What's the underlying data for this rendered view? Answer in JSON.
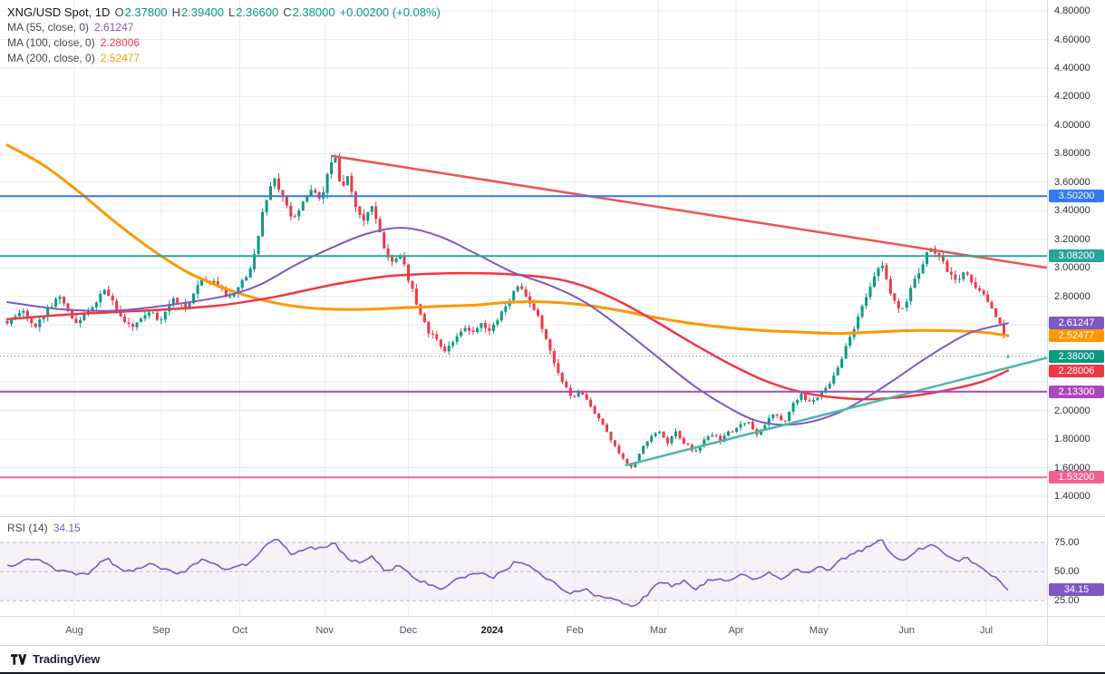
{
  "legend": {
    "title": "XNG/USD Spot, 1D",
    "fields": [
      {
        "k": "O",
        "v": "2.37800"
      },
      {
        "k": "H",
        "v": "2.39400"
      },
      {
        "k": "L",
        "v": "2.36600"
      },
      {
        "k": "C",
        "v": "2.38000"
      }
    ],
    "change": "+0.00200 (+0.08%)",
    "ma": [
      {
        "label": "MA (55, close, 0)",
        "value": "2.61247",
        "color": "#7e57c2"
      },
      {
        "label": "MA (100, close, 0)",
        "value": "2.28006",
        "color": "#f23645"
      },
      {
        "label": "MA (200, close, 0)",
        "value": "2.52477",
        "color": "#ff9800"
      }
    ]
  },
  "price_axis": {
    "ticks": [
      "4.80000",
      "4.60000",
      "4.40000",
      "4.20000",
      "4.00000",
      "3.80000",
      "3.60000",
      "3.40000",
      "3.20000",
      "3.00000",
      "2.80000",
      "2.00000",
      "1.80000",
      "1.60000",
      "1.40000"
    ],
    "badges": [
      {
        "label": "3.50200",
        "price": 3.502,
        "color": "#3179f5"
      },
      {
        "label": "3.08200",
        "price": 3.082,
        "color": "#26a69a"
      },
      {
        "label": "2.61247",
        "price": 2.61247,
        "color": "#7e57c2"
      },
      {
        "label": "2.52477",
        "price": 2.52477,
        "color": "#ff9800"
      },
      {
        "label": "2.38000",
        "price": 2.38,
        "color": "#089981"
      },
      {
        "label": "2.28006",
        "price": 2.28006,
        "color": "#f23645"
      },
      {
        "label": "2.13300",
        "price": 2.133,
        "color": "#ab47bc"
      },
      {
        "label": "1.53200",
        "price": 1.532,
        "color": "#f06292"
      }
    ]
  },
  "rsi": {
    "title": "RSI (14)",
    "value": "34.15",
    "color": "#7e57c2",
    "range": [
      11,
      96.9
    ],
    "band": [
      25,
      75
    ],
    "axis_ticks": [
      {
        "label": "75.00",
        "value": 75
      },
      {
        "label": "50.00",
        "value": 50
      },
      {
        "label": "25.00",
        "value": 25
      }
    ],
    "badge": {
      "label": "34.15",
      "value": 34.15,
      "color": "#7e57c2"
    }
  },
  "time_axis": [
    {
      "label": "Aug",
      "t": 0.071
    },
    {
      "label": "Sep",
      "t": 0.154
    },
    {
      "label": "Oct",
      "t": 0.229
    },
    {
      "label": "Nov",
      "t": 0.31
    },
    {
      "label": "Dec",
      "t": 0.39
    },
    {
      "label": "2024",
      "t": 0.47,
      "emphasis": true
    },
    {
      "label": "Feb",
      "t": 0.549
    },
    {
      "label": "Mar",
      "t": 0.629
    },
    {
      "label": "Apr",
      "t": 0.703
    },
    {
      "label": "May",
      "t": 0.782
    },
    {
      "label": "Jun",
      "t": 0.866
    },
    {
      "label": "Jul",
      "t": 0.942
    }
  ],
  "footer": {
    "brand": "TradingView"
  },
  "colors": {
    "up": "#089981",
    "down": "#f23645",
    "grid": "#e9ecf2",
    "axis_text": "#2a2e39",
    "last_price_line": "#6a6f7a"
  },
  "chart_data": {
    "type": "candlestick",
    "symbol": "XNG/USD Spot",
    "interval": "1D",
    "bars": 248,
    "last_bar": {
      "open": 2.378,
      "high": 2.394,
      "low": 2.366,
      "close": 2.38,
      "change": 0.002,
      "change_pct": 0.08
    },
    "y_range": [
      1.2539,
      4.8763
    ],
    "last_price": 2.38,
    "levels": [
      {
        "price": 3.502,
        "color": "#3179f5"
      },
      {
        "price": 3.082,
        "color": "#26a69a"
      },
      {
        "price": 2.133,
        "color": "#ab47bc"
      },
      {
        "price": 1.532,
        "color": "#f06292"
      }
    ],
    "trendlines": [
      {
        "x1": 0.316,
        "p1": 3.785,
        "x2": 1.0,
        "p2": 3.0,
        "color": "#ef5350",
        "width": 2.5
      },
      {
        "x1": 0.597,
        "p1": 1.615,
        "x2": 1.0,
        "p2": 2.37,
        "color": "#4db6ac",
        "width": 2.5
      }
    ],
    "moving_averages": [
      {
        "name": "MA200",
        "color": "#ff9800",
        "width": 3,
        "points": [
          [
            0,
            3.86
          ],
          [
            0.036,
            3.72
          ],
          [
            0.072,
            3.53
          ],
          [
            0.108,
            3.32
          ],
          [
            0.144,
            3.13
          ],
          [
            0.18,
            2.97
          ],
          [
            0.216,
            2.86
          ],
          [
            0.252,
            2.78
          ],
          [
            0.288,
            2.73
          ],
          [
            0.324,
            2.71
          ],
          [
            0.36,
            2.71
          ],
          [
            0.396,
            2.72
          ],
          [
            0.432,
            2.73
          ],
          [
            0.468,
            2.74
          ],
          [
            0.505,
            2.76
          ],
          [
            0.541,
            2.76
          ],
          [
            0.577,
            2.74
          ],
          [
            0.613,
            2.7
          ],
          [
            0.649,
            2.65
          ],
          [
            0.685,
            2.61
          ],
          [
            0.721,
            2.58
          ],
          [
            0.757,
            2.56
          ],
          [
            0.793,
            2.55
          ],
          [
            0.829,
            2.54
          ],
          [
            0.865,
            2.55
          ],
          [
            0.901,
            2.56
          ],
          [
            0.937,
            2.56
          ],
          [
            0.973,
            2.55
          ],
          [
            1,
            2.525
          ]
        ]
      },
      {
        "name": "MA100",
        "color": "#f23645",
        "width": 2.5,
        "points": [
          [
            0,
            2.64
          ],
          [
            0.054,
            2.67
          ],
          [
            0.108,
            2.69
          ],
          [
            0.162,
            2.71
          ],
          [
            0.216,
            2.74
          ],
          [
            0.27,
            2.8
          ],
          [
            0.324,
            2.88
          ],
          [
            0.378,
            2.94
          ],
          [
            0.432,
            2.96
          ],
          [
            0.486,
            2.96
          ],
          [
            0.541,
            2.93
          ],
          [
            0.577,
            2.87
          ],
          [
            0.613,
            2.76
          ],
          [
            0.649,
            2.62
          ],
          [
            0.685,
            2.47
          ],
          [
            0.721,
            2.33
          ],
          [
            0.757,
            2.21
          ],
          [
            0.793,
            2.13
          ],
          [
            0.829,
            2.09
          ],
          [
            0.865,
            2.08
          ],
          [
            0.901,
            2.1
          ],
          [
            0.937,
            2.14
          ],
          [
            0.973,
            2.2
          ],
          [
            1,
            2.28
          ]
        ]
      },
      {
        "name": "MA55",
        "color": "#7e57c2",
        "width": 2,
        "points": [
          [
            0,
            2.76
          ],
          [
            0.054,
            2.71
          ],
          [
            0.108,
            2.7
          ],
          [
            0.162,
            2.74
          ],
          [
            0.216,
            2.8
          ],
          [
            0.252,
            2.88
          ],
          [
            0.288,
            3.02
          ],
          [
            0.324,
            3.14
          ],
          [
            0.36,
            3.24
          ],
          [
            0.396,
            3.28
          ],
          [
            0.432,
            3.22
          ],
          [
            0.468,
            3.1
          ],
          [
            0.505,
            2.97
          ],
          [
            0.541,
            2.88
          ],
          [
            0.577,
            2.76
          ],
          [
            0.613,
            2.58
          ],
          [
            0.649,
            2.38
          ],
          [
            0.685,
            2.18
          ],
          [
            0.721,
            2.02
          ],
          [
            0.748,
            1.93
          ],
          [
            0.775,
            1.9
          ],
          [
            0.802,
            1.92
          ],
          [
            0.829,
            1.98
          ],
          [
            0.856,
            2.08
          ],
          [
            0.883,
            2.2
          ],
          [
            0.91,
            2.33
          ],
          [
            0.937,
            2.45
          ],
          [
            0.964,
            2.55
          ],
          [
            1,
            2.612
          ]
        ]
      }
    ],
    "price_anchors": [
      [
        0,
        2.62
      ],
      [
        0.014,
        2.7
      ],
      [
        0.027,
        2.58
      ],
      [
        0.041,
        2.72
      ],
      [
        0.052,
        2.8
      ],
      [
        0.068,
        2.62
      ],
      [
        0.086,
        2.73
      ],
      [
        0.097,
        2.86
      ],
      [
        0.113,
        2.66
      ],
      [
        0.126,
        2.59
      ],
      [
        0.14,
        2.7
      ],
      [
        0.153,
        2.63
      ],
      [
        0.167,
        2.79
      ],
      [
        0.18,
        2.71
      ],
      [
        0.195,
        2.93
      ],
      [
        0.207,
        2.89
      ],
      [
        0.221,
        2.79
      ],
      [
        0.232,
        2.87
      ],
      [
        0.245,
        3.02
      ],
      [
        0.257,
        3.45
      ],
      [
        0.267,
        3.62
      ],
      [
        0.276,
        3.5
      ],
      [
        0.285,
        3.36
      ],
      [
        0.294,
        3.42
      ],
      [
        0.303,
        3.56
      ],
      [
        0.312,
        3.46
      ],
      [
        0.321,
        3.68
      ],
      [
        0.327,
        3.78
      ],
      [
        0.334,
        3.55
      ],
      [
        0.341,
        3.64
      ],
      [
        0.349,
        3.42
      ],
      [
        0.357,
        3.31
      ],
      [
        0.365,
        3.46
      ],
      [
        0.374,
        3.21
      ],
      [
        0.383,
        3.02
      ],
      [
        0.392,
        3.12
      ],
      [
        0.401,
        2.92
      ],
      [
        0.411,
        2.7
      ],
      [
        0.42,
        2.56
      ],
      [
        0.429,
        2.49
      ],
      [
        0.438,
        2.41
      ],
      [
        0.447,
        2.51
      ],
      [
        0.456,
        2.59
      ],
      [
        0.465,
        2.53
      ],
      [
        0.474,
        2.61
      ],
      [
        0.483,
        2.55
      ],
      [
        0.492,
        2.66
      ],
      [
        0.501,
        2.76
      ],
      [
        0.51,
        2.87
      ],
      [
        0.519,
        2.79
      ],
      [
        0.528,
        2.7
      ],
      [
        0.537,
        2.54
      ],
      [
        0.546,
        2.34
      ],
      [
        0.555,
        2.19
      ],
      [
        0.564,
        2.1
      ],
      [
        0.573,
        2.13
      ],
      [
        0.582,
        2.04
      ],
      [
        0.591,
        1.95
      ],
      [
        0.6,
        1.84
      ],
      [
        0.609,
        1.72
      ],
      [
        0.618,
        1.64
      ],
      [
        0.624,
        1.6
      ],
      [
        0.631,
        1.69
      ],
      [
        0.64,
        1.79
      ],
      [
        0.65,
        1.87
      ],
      [
        0.659,
        1.77
      ],
      [
        0.668,
        1.85
      ],
      [
        0.677,
        1.77
      ],
      [
        0.686,
        1.71
      ],
      [
        0.695,
        1.78
      ],
      [
        0.704,
        1.83
      ],
      [
        0.713,
        1.79
      ],
      [
        0.722,
        1.85
      ],
      [
        0.731,
        1.89
      ],
      [
        0.74,
        1.93
      ],
      [
        0.749,
        1.84
      ],
      [
        0.758,
        1.92
      ],
      [
        0.767,
        1.98
      ],
      [
        0.776,
        1.91
      ],
      [
        0.785,
        2.06
      ],
      [
        0.794,
        2.11
      ],
      [
        0.803,
        2.05
      ],
      [
        0.812,
        2.12
      ],
      [
        0.821,
        2.16
      ],
      [
        0.83,
        2.3
      ],
      [
        0.839,
        2.45
      ],
      [
        0.848,
        2.62
      ],
      [
        0.857,
        2.78
      ],
      [
        0.866,
        2.92
      ],
      [
        0.872,
        3.04
      ],
      [
        0.878,
        2.93
      ],
      [
        0.885,
        2.77
      ],
      [
        0.895,
        2.7
      ],
      [
        0.903,
        2.86
      ],
      [
        0.913,
        3.0
      ],
      [
        0.922,
        3.14
      ],
      [
        0.931,
        3.09
      ],
      [
        0.94,
        2.96
      ],
      [
        0.949,
        2.9
      ],
      [
        0.958,
        2.97
      ],
      [
        0.967,
        2.86
      ],
      [
        0.976,
        2.8
      ],
      [
        0.985,
        2.7
      ],
      [
        0.994,
        2.58
      ],
      [
        1,
        2.4
      ]
    ],
    "rsi_anchors": [
      [
        0,
        55
      ],
      [
        0.027,
        61
      ],
      [
        0.054,
        50
      ],
      [
        0.081,
        47
      ],
      [
        0.099,
        62
      ],
      [
        0.117,
        49
      ],
      [
        0.144,
        56
      ],
      [
        0.171,
        47
      ],
      [
        0.194,
        60
      ],
      [
        0.221,
        51
      ],
      [
        0.243,
        58
      ],
      [
        0.261,
        74
      ],
      [
        0.27,
        78
      ],
      [
        0.284,
        64
      ],
      [
        0.297,
        69
      ],
      [
        0.315,
        71
      ],
      [
        0.327,
        74
      ],
      [
        0.338,
        63
      ],
      [
        0.351,
        57
      ],
      [
        0.365,
        63
      ],
      [
        0.378,
        49
      ],
      [
        0.392,
        56
      ],
      [
        0.405,
        44
      ],
      [
        0.419,
        40
      ],
      [
        0.432,
        34
      ],
      [
        0.446,
        43
      ],
      [
        0.459,
        46
      ],
      [
        0.473,
        49
      ],
      [
        0.486,
        45
      ],
      [
        0.5,
        53
      ],
      [
        0.509,
        59
      ],
      [
        0.523,
        53
      ],
      [
        0.536,
        46
      ],
      [
        0.55,
        38
      ],
      [
        0.563,
        31
      ],
      [
        0.577,
        35
      ],
      [
        0.59,
        29
      ],
      [
        0.604,
        26
      ],
      [
        0.617,
        22
      ],
      [
        0.626,
        19
      ],
      [
        0.635,
        27
      ],
      [
        0.644,
        34
      ],
      [
        0.653,
        42
      ],
      [
        0.665,
        37
      ],
      [
        0.676,
        43
      ],
      [
        0.687,
        35
      ],
      [
        0.698,
        41
      ],
      [
        0.71,
        45
      ],
      [
        0.721,
        41
      ],
      [
        0.734,
        47
      ],
      [
        0.748,
        42
      ],
      [
        0.761,
        49
      ],
      [
        0.775,
        44
      ],
      [
        0.788,
        53
      ],
      [
        0.8,
        49
      ],
      [
        0.811,
        55
      ],
      [
        0.822,
        52
      ],
      [
        0.832,
        60
      ],
      [
        0.843,
        64
      ],
      [
        0.854,
        68
      ],
      [
        0.865,
        74
      ],
      [
        0.872,
        79
      ],
      [
        0.878,
        71
      ],
      [
        0.887,
        63
      ],
      [
        0.896,
        60
      ],
      [
        0.905,
        66
      ],
      [
        0.914,
        70
      ],
      [
        0.923,
        73
      ],
      [
        0.932,
        69
      ],
      [
        0.941,
        62
      ],
      [
        0.95,
        58
      ],
      [
        0.959,
        63
      ],
      [
        0.968,
        55
      ],
      [
        0.977,
        51
      ],
      [
        0.986,
        46
      ],
      [
        0.995,
        40
      ],
      [
        1,
        34.15
      ]
    ]
  }
}
